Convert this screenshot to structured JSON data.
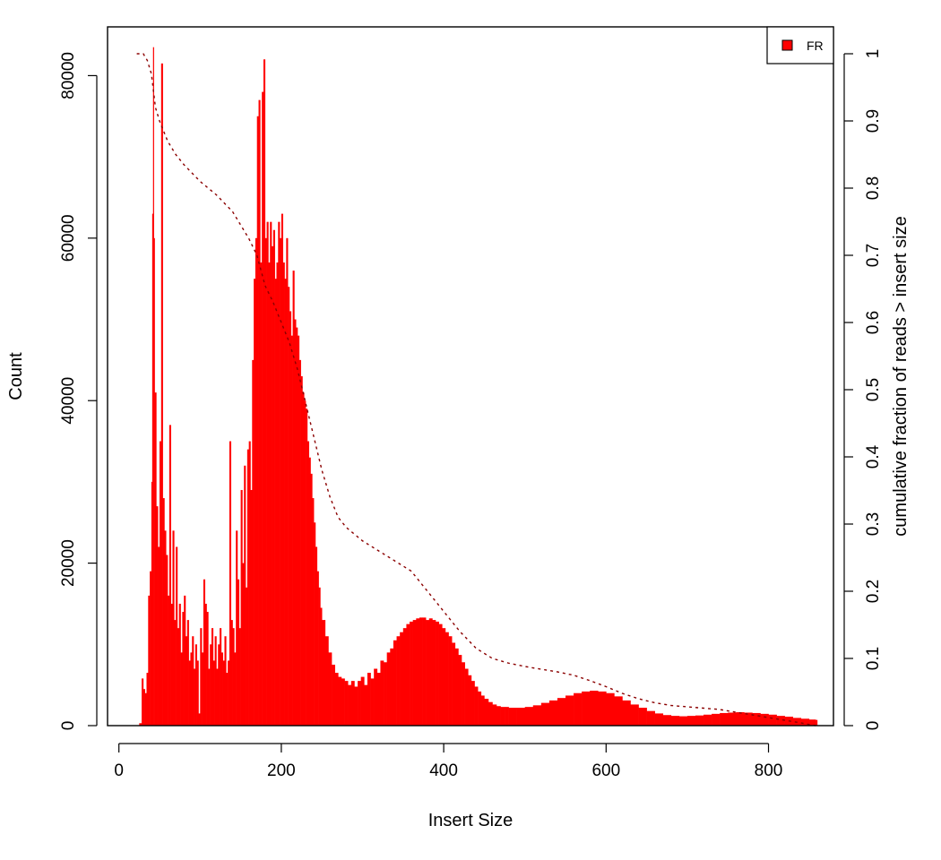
{
  "chart_data": {
    "type": "bar",
    "title": "",
    "xlabel": "Insert Size",
    "ylabel": "Count",
    "y2label": "cumulative fraction of reads > insert size",
    "xlim": [
      -14,
      880
    ],
    "ylim": [
      0,
      86000
    ],
    "y2lim": [
      0,
      1.04
    ],
    "xticks": [
      0,
      200,
      400,
      600,
      800
    ],
    "yticks": [
      0,
      20000,
      40000,
      60000,
      80000
    ],
    "y2ticks": [
      0,
      0.1,
      0.2,
      0.3,
      0.4,
      0.5,
      0.6,
      0.7,
      0.8,
      0.9,
      1
    ],
    "x_tick_labels": [
      "0",
      "200",
      "400",
      "600",
      "800"
    ],
    "y_tick_labels": [
      "0",
      "20000",
      "40000",
      "60000",
      "80000"
    ],
    "y2_tick_labels": [
      "0",
      "0.1",
      "0.2",
      "0.3",
      "0.4",
      "0.5",
      "0.6",
      "0.7",
      "0.8",
      "0.9",
      "1"
    ],
    "legend": {
      "entries": [
        "FR"
      ],
      "position": "top-right"
    },
    "colors": {
      "bars": "#ff0000",
      "cumulative_line": "#8b0000",
      "legend_swatch": "#ff0000"
    },
    "series": [
      {
        "name": "FR",
        "type": "bar",
        "points": [
          [
            22,
            0
          ],
          [
            25,
            300
          ],
          [
            28,
            5800
          ],
          [
            30,
            4500
          ],
          [
            32,
            4000
          ],
          [
            34,
            6500
          ],
          [
            36,
            16000
          ],
          [
            38,
            19000
          ],
          [
            40,
            30000
          ],
          [
            41,
            63000
          ],
          [
            42,
            83500
          ],
          [
            43,
            60000
          ],
          [
            44,
            41000
          ],
          [
            46,
            27000
          ],
          [
            48,
            22000
          ],
          [
            50,
            35000
          ],
          [
            52,
            81500
          ],
          [
            54,
            28000
          ],
          [
            56,
            24000
          ],
          [
            58,
            21000
          ],
          [
            60,
            16000
          ],
          [
            62,
            37000
          ],
          [
            64,
            15000
          ],
          [
            66,
            24000
          ],
          [
            68,
            13000
          ],
          [
            70,
            22000
          ],
          [
            72,
            12000
          ],
          [
            74,
            15000
          ],
          [
            76,
            9000
          ],
          [
            78,
            14000
          ],
          [
            80,
            16000
          ],
          [
            82,
            11000
          ],
          [
            84,
            13000
          ],
          [
            86,
            8000
          ],
          [
            88,
            9000
          ],
          [
            90,
            11000
          ],
          [
            92,
            7000
          ],
          [
            94,
            10000
          ],
          [
            96,
            8000
          ],
          [
            98,
            1500
          ],
          [
            100,
            12000
          ],
          [
            102,
            9000
          ],
          [
            104,
            18000
          ],
          [
            106,
            15000
          ],
          [
            108,
            14000
          ],
          [
            110,
            7000
          ],
          [
            112,
            10000
          ],
          [
            114,
            12000
          ],
          [
            116,
            8000
          ],
          [
            118,
            11000
          ],
          [
            120,
            7000
          ],
          [
            122,
            10000
          ],
          [
            124,
            12000
          ],
          [
            126,
            9000
          ],
          [
            128,
            8000
          ],
          [
            130,
            11000
          ],
          [
            132,
            6500
          ],
          [
            134,
            8000
          ],
          [
            136,
            35000
          ],
          [
            138,
            13000
          ],
          [
            140,
            12000
          ],
          [
            142,
            9000
          ],
          [
            144,
            24000
          ],
          [
            146,
            18000
          ],
          [
            148,
            12000
          ],
          [
            150,
            29000
          ],
          [
            152,
            20000
          ],
          [
            154,
            32000
          ],
          [
            156,
            17000
          ],
          [
            158,
            34000
          ],
          [
            160,
            35000
          ],
          [
            162,
            29000
          ],
          [
            164,
            45000
          ],
          [
            166,
            55000
          ],
          [
            168,
            60000
          ],
          [
            170,
            75000
          ],
          [
            172,
            77000
          ],
          [
            174,
            57000
          ],
          [
            176,
            78000
          ],
          [
            178,
            82000
          ],
          [
            180,
            60000
          ],
          [
            182,
            62000
          ],
          [
            184,
            57000
          ],
          [
            186,
            62000
          ],
          [
            188,
            59000
          ],
          [
            190,
            61000
          ],
          [
            192,
            55000
          ],
          [
            194,
            57000
          ],
          [
            196,
            62000
          ],
          [
            198,
            60000
          ],
          [
            200,
            63000
          ],
          [
            202,
            57000
          ],
          [
            204,
            55000
          ],
          [
            206,
            60000
          ],
          [
            208,
            54000
          ],
          [
            210,
            51000
          ],
          [
            212,
            48000
          ],
          [
            214,
            56000
          ],
          [
            216,
            50000
          ],
          [
            218,
            49000
          ],
          [
            220,
            48000
          ],
          [
            222,
            45000
          ],
          [
            224,
            43000
          ],
          [
            226,
            41000
          ],
          [
            228,
            40000
          ],
          [
            230,
            39000
          ],
          [
            232,
            35000
          ],
          [
            234,
            33000
          ],
          [
            236,
            31000
          ],
          [
            238,
            28000
          ],
          [
            240,
            25000
          ],
          [
            242,
            22000
          ],
          [
            244,
            19000
          ],
          [
            246,
            17000
          ],
          [
            248,
            14500
          ],
          [
            250,
            13000
          ],
          [
            254,
            11000
          ],
          [
            258,
            9000
          ],
          [
            262,
            7500
          ],
          [
            266,
            6500
          ],
          [
            270,
            6000
          ],
          [
            274,
            5800
          ],
          [
            278,
            5500
          ],
          [
            282,
            5000
          ],
          [
            286,
            5500
          ],
          [
            290,
            4800
          ],
          [
            294,
            5500
          ],
          [
            298,
            6000
          ],
          [
            302,
            5000
          ],
          [
            306,
            6500
          ],
          [
            310,
            5800
          ],
          [
            314,
            7000
          ],
          [
            318,
            6500
          ],
          [
            322,
            8000
          ],
          [
            326,
            7800
          ],
          [
            330,
            9000
          ],
          [
            334,
            9500
          ],
          [
            338,
            10500
          ],
          [
            342,
            11000
          ],
          [
            346,
            11500
          ],
          [
            350,
            12000
          ],
          [
            354,
            12500
          ],
          [
            358,
            12800
          ],
          [
            362,
            13000
          ],
          [
            366,
            13200
          ],
          [
            370,
            13300
          ],
          [
            374,
            13300
          ],
          [
            378,
            13000
          ],
          [
            382,
            13200
          ],
          [
            386,
            13000
          ],
          [
            390,
            12800
          ],
          [
            394,
            12500
          ],
          [
            398,
            12000
          ],
          [
            402,
            11500
          ],
          [
            406,
            11000
          ],
          [
            410,
            10200
          ],
          [
            414,
            9500
          ],
          [
            418,
            8700
          ],
          [
            422,
            7800
          ],
          [
            426,
            7000
          ],
          [
            430,
            6200
          ],
          [
            434,
            5500
          ],
          [
            438,
            4800
          ],
          [
            442,
            4200
          ],
          [
            446,
            3700
          ],
          [
            450,
            3300
          ],
          [
            455,
            2900
          ],
          [
            460,
            2600
          ],
          [
            465,
            2400
          ],
          [
            470,
            2300
          ],
          [
            475,
            2300
          ],
          [
            480,
            2200
          ],
          [
            490,
            2200
          ],
          [
            500,
            2300
          ],
          [
            510,
            2500
          ],
          [
            520,
            2800
          ],
          [
            530,
            3100
          ],
          [
            540,
            3400
          ],
          [
            550,
            3700
          ],
          [
            560,
            4000
          ],
          [
            570,
            4200
          ],
          [
            580,
            4300
          ],
          [
            590,
            4200
          ],
          [
            600,
            4000
          ],
          [
            610,
            3600
          ],
          [
            620,
            3100
          ],
          [
            630,
            2600
          ],
          [
            640,
            2200
          ],
          [
            650,
            1800
          ],
          [
            660,
            1500
          ],
          [
            670,
            1300
          ],
          [
            680,
            1200
          ],
          [
            690,
            1150
          ],
          [
            700,
            1200
          ],
          [
            710,
            1250
          ],
          [
            720,
            1350
          ],
          [
            730,
            1450
          ],
          [
            740,
            1550
          ],
          [
            750,
            1600
          ],
          [
            760,
            1650
          ],
          [
            770,
            1600
          ],
          [
            780,
            1550
          ],
          [
            790,
            1450
          ],
          [
            800,
            1350
          ],
          [
            810,
            1200
          ],
          [
            820,
            1100
          ],
          [
            830,
            950
          ],
          [
            840,
            850
          ],
          [
            850,
            750
          ],
          [
            858,
            700
          ]
        ]
      },
      {
        "type": "line",
        "axis": "right",
        "style": "dashed",
        "points": [
          [
            22,
            1.0
          ],
          [
            30,
            1.0
          ],
          [
            35,
            0.99
          ],
          [
            40,
            0.97
          ],
          [
            45,
            0.92
          ],
          [
            50,
            0.9
          ],
          [
            60,
            0.87
          ],
          [
            70,
            0.85
          ],
          [
            80,
            0.835
          ],
          [
            100,
            0.81
          ],
          [
            120,
            0.79
          ],
          [
            140,
            0.765
          ],
          [
            150,
            0.745
          ],
          [
            160,
            0.725
          ],
          [
            170,
            0.7
          ],
          [
            180,
            0.655
          ],
          [
            190,
            0.63
          ],
          [
            200,
            0.6
          ],
          [
            210,
            0.57
          ],
          [
            220,
            0.53
          ],
          [
            230,
            0.48
          ],
          [
            240,
            0.43
          ],
          [
            250,
            0.38
          ],
          [
            260,
            0.34
          ],
          [
            270,
            0.31
          ],
          [
            280,
            0.295
          ],
          [
            290,
            0.285
          ],
          [
            300,
            0.275
          ],
          [
            320,
            0.26
          ],
          [
            340,
            0.245
          ],
          [
            360,
            0.23
          ],
          [
            380,
            0.2
          ],
          [
            400,
            0.17
          ],
          [
            420,
            0.14
          ],
          [
            440,
            0.115
          ],
          [
            460,
            0.1
          ],
          [
            480,
            0.093
          ],
          [
            500,
            0.088
          ],
          [
            520,
            0.084
          ],
          [
            540,
            0.08
          ],
          [
            560,
            0.075
          ],
          [
            580,
            0.067
          ],
          [
            600,
            0.058
          ],
          [
            620,
            0.048
          ],
          [
            640,
            0.04
          ],
          [
            660,
            0.034
          ],
          [
            680,
            0.03
          ],
          [
            700,
            0.028
          ],
          [
            720,
            0.026
          ],
          [
            740,
            0.024
          ],
          [
            760,
            0.02
          ],
          [
            780,
            0.016
          ],
          [
            800,
            0.012
          ],
          [
            820,
            0.008
          ],
          [
            840,
            0.004
          ],
          [
            858,
            0.0
          ]
        ]
      }
    ]
  }
}
